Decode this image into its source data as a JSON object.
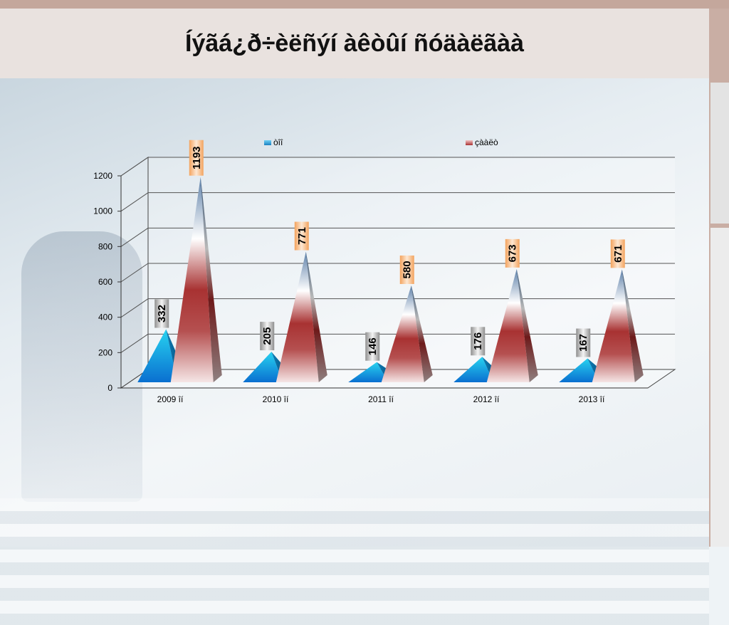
{
  "slide": {
    "title": "Íýãá¿ð÷èëñýí àêòûí ñóäàëãàà"
  },
  "chart_data": {
    "type": "bar",
    "categories": [
      "2009 îí",
      "2010 îí",
      "2011 îí",
      "2012 îí",
      "2013 îí"
    ],
    "series": [
      {
        "name": "òîî",
        "values": [
          332,
          205,
          146,
          176,
          167
        ],
        "color": "#1a9bd8"
      },
      {
        "name": "çààëò",
        "values": [
          1193,
          771,
          580,
          673,
          671
        ],
        "color": "#a83232"
      }
    ],
    "ylim": [
      0,
      1200
    ],
    "yticks": [
      "0",
      "200",
      "400",
      "600",
      "800",
      "1000",
      "1200"
    ],
    "legend": "top",
    "grid": true,
    "data_labels": true
  }
}
